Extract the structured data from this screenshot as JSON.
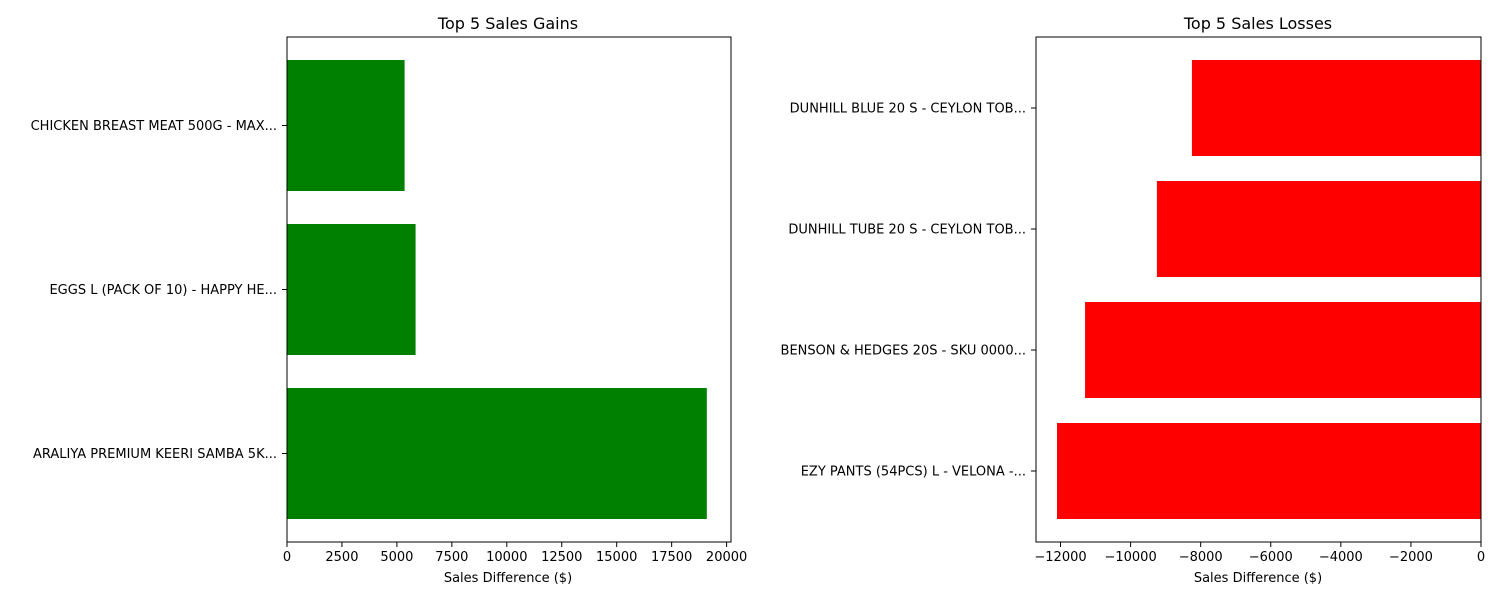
{
  "chart_data": [
    {
      "type": "bar",
      "orientation": "horizontal",
      "title": "Top 5 Sales Gains",
      "xlabel": "Sales Difference ($)",
      "ylabel": "",
      "categories": [
        "CHICKEN BREAST MEAT 500G - MAX...",
        "EGGS L (PACK OF 10) - HAPPY HE...",
        "ARALIYA PREMIUM KEERI SAMBA 5K..."
      ],
      "values": [
        5350,
        5850,
        19100
      ],
      "xlim": [
        0,
        20200
      ],
      "xticks": [
        0,
        2500,
        5000,
        7500,
        10000,
        12500,
        15000,
        17500,
        20000
      ],
      "xtick_labels": [
        "0",
        "2500",
        "5000",
        "7500",
        "10000",
        "12500",
        "15000",
        "17500",
        "20000"
      ],
      "color": "#008000",
      "grid": false
    },
    {
      "type": "bar",
      "orientation": "horizontal",
      "title": "Top 5 Sales Losses",
      "xlabel": "Sales Difference ($)",
      "ylabel": "",
      "categories": [
        "DUNHILL BLUE 20 S - CEYLON TOB...",
        "DUNHILL TUBE 20 S - CEYLON TOB...",
        "BENSON & HEDGES 20S - SKU 0000...",
        "EZY PANTS (54PCS) L - VELONA -..."
      ],
      "values": [
        -8250,
        -9250,
        -11300,
        -12100
      ],
      "xlim": [
        -12700,
        0
      ],
      "xticks": [
        -12000,
        -10000,
        -8000,
        -6000,
        -4000,
        -2000,
        0
      ],
      "xtick_labels": [
        "−12000",
        "−10000",
        "−8000",
        "−6000",
        "−4000",
        "−2000",
        "0"
      ],
      "color": "#ff0000",
      "grid": false
    }
  ]
}
